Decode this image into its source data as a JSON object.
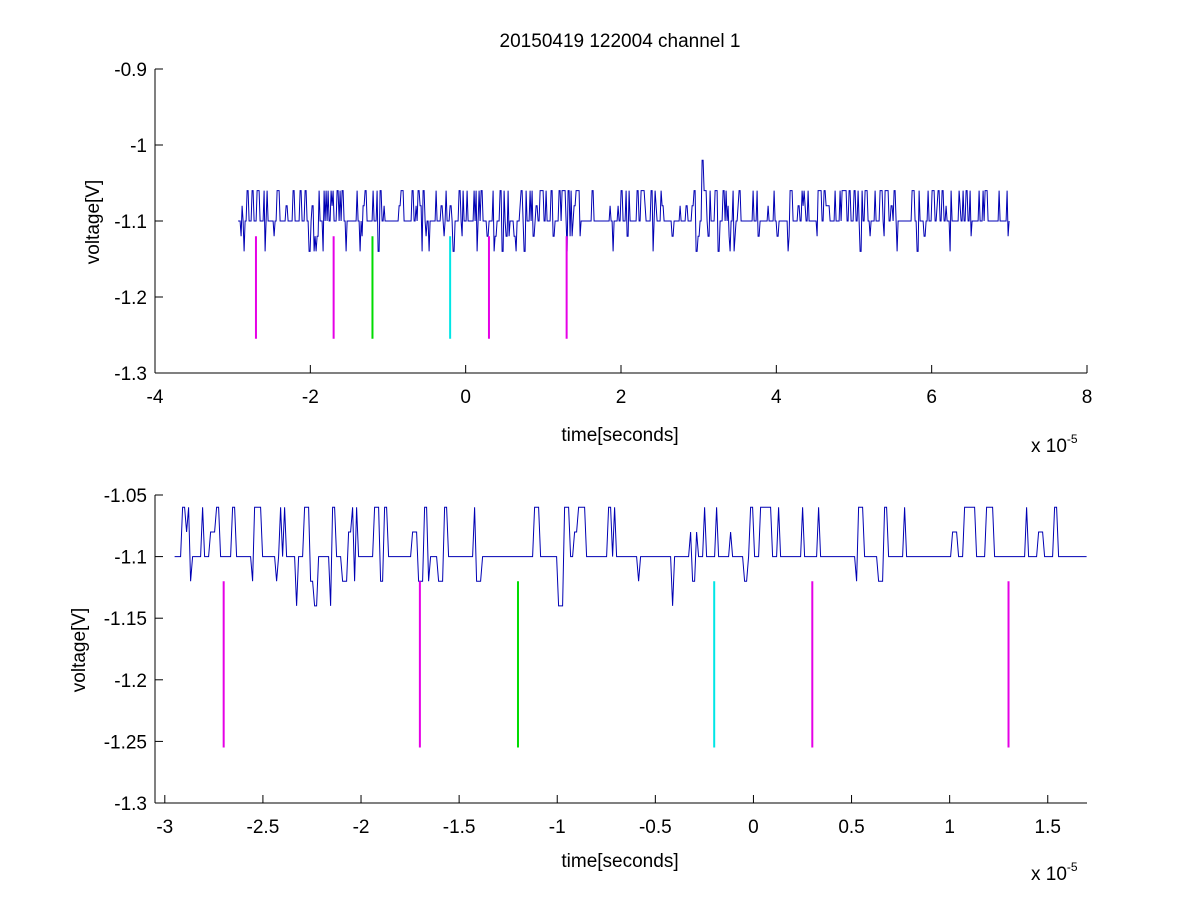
{
  "figure": {
    "title": "20150419 122004 channel 1"
  },
  "colors": {
    "signal": "#0000b4",
    "marker_magenta": "#e600e6",
    "marker_green": "#00dc00",
    "marker_cyan": "#00e6e6",
    "axis": "#000000"
  },
  "chart_data": [
    {
      "type": "line",
      "title": "20150419 122004 channel 1",
      "xlabel": "time[seconds]",
      "ylabel": "voltage[V]",
      "x_multiplier": "x 10",
      "x_exponent": "-5",
      "xlim": [
        -4,
        8
      ],
      "ylim": [
        -1.3,
        -0.9
      ],
      "x_ticks": [
        -4,
        -2,
        0,
        2,
        4,
        6,
        8
      ],
      "x_tick_labels": [
        "-4",
        "-2",
        "0",
        "2",
        "4",
        "6",
        "8"
      ],
      "y_ticks": [
        -1.3,
        -1.2,
        -1.1,
        -1,
        -0.9
      ],
      "y_tick_labels": [
        "-1.3",
        "-1.2",
        "-1.1",
        "-1",
        "-0.9"
      ],
      "grid": false,
      "series": [
        {
          "kind": "signal",
          "x_range": [
            -2.93,
            7.0
          ],
          "baseline": -1.1,
          "levels": [
            -1.14,
            -1.12,
            -1.1,
            -1.08,
            -1.06
          ],
          "spike": {
            "x": 3.05,
            "y": -1.02
          }
        }
      ],
      "markers": [
        {
          "x": -2.7,
          "y_top": -1.12,
          "y_bottom": -1.255,
          "color": "magenta"
        },
        {
          "x": -1.7,
          "y_top": -1.12,
          "y_bottom": -1.255,
          "color": "magenta"
        },
        {
          "x": -1.2,
          "y_top": -1.12,
          "y_bottom": -1.255,
          "color": "green"
        },
        {
          "x": -0.2,
          "y_top": -1.12,
          "y_bottom": -1.255,
          "color": "cyan"
        },
        {
          "x": 0.3,
          "y_top": -1.12,
          "y_bottom": -1.255,
          "color": "magenta"
        },
        {
          "x": 1.3,
          "y_top": -1.12,
          "y_bottom": -1.255,
          "color": "magenta"
        }
      ]
    },
    {
      "type": "line",
      "title": "",
      "xlabel": "time[seconds]",
      "ylabel": "voltage[V]",
      "x_multiplier": "x 10",
      "x_exponent": "-5",
      "xlim": [
        -3.05,
        1.7
      ],
      "ylim": [
        -1.3,
        -1.05
      ],
      "x_ticks": [
        -3,
        -2.5,
        -2,
        -1.5,
        -1,
        -0.5,
        0,
        0.5,
        1,
        1.5
      ],
      "x_tick_labels": [
        "-3",
        "-2.5",
        "-2",
        "-1.5",
        "-1",
        "-0.5",
        "0",
        "0.5",
        "1",
        "1.5"
      ],
      "y_ticks": [
        -1.3,
        -1.25,
        -1.2,
        -1.15,
        -1.1,
        -1.05
      ],
      "y_tick_labels": [
        "-1.3",
        "-1.25",
        "-1.2",
        "-1.15",
        "-1.1",
        "-1.05"
      ],
      "grid": false,
      "series": [
        {
          "kind": "signal",
          "x_range": [
            -2.95,
            1.7
          ],
          "baseline": -1.1,
          "levels": [
            -1.14,
            -1.12,
            -1.1,
            -1.08,
            -1.06
          ]
        }
      ],
      "markers": [
        {
          "x": -2.7,
          "y_top": -1.12,
          "y_bottom": -1.255,
          "color": "magenta"
        },
        {
          "x": -1.7,
          "y_top": -1.12,
          "y_bottom": -1.255,
          "color": "magenta"
        },
        {
          "x": -1.2,
          "y_top": -1.12,
          "y_bottom": -1.255,
          "color": "green"
        },
        {
          "x": -0.2,
          "y_top": -1.12,
          "y_bottom": -1.255,
          "color": "cyan"
        },
        {
          "x": 0.3,
          "y_top": -1.12,
          "y_bottom": -1.255,
          "color": "magenta"
        },
        {
          "x": 1.3,
          "y_top": -1.12,
          "y_bottom": -1.255,
          "color": "magenta"
        }
      ]
    }
  ]
}
